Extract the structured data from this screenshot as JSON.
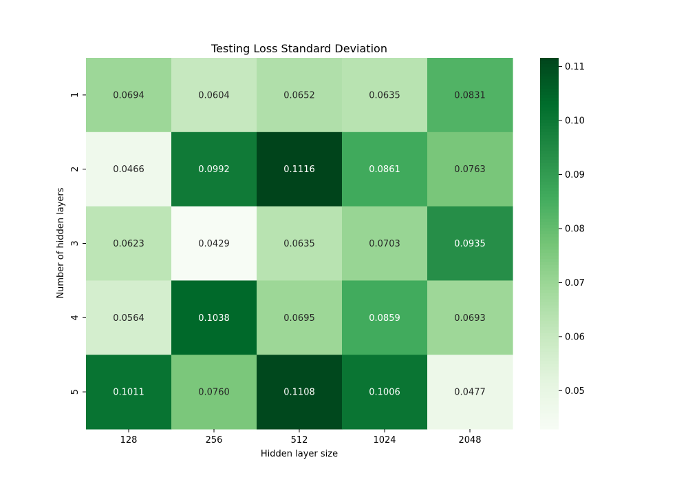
{
  "chart_data": {
    "type": "heatmap",
    "title": "Testing Loss Standard Deviation",
    "xlabel": "Hidden layer size",
    "ylabel": "Number of hidden layers",
    "x_categories": [
      "128",
      "256",
      "512",
      "1024",
      "2048"
    ],
    "y_categories": [
      "1",
      "2",
      "3",
      "4",
      "5"
    ],
    "values": [
      [
        0.0694,
        0.0604,
        0.0652,
        0.0635,
        0.0831
      ],
      [
        0.0466,
        0.0992,
        0.1116,
        0.0861,
        0.0763
      ],
      [
        0.0623,
        0.0429,
        0.0635,
        0.0703,
        0.0935
      ],
      [
        0.0564,
        0.1038,
        0.0695,
        0.0859,
        0.0693
      ],
      [
        0.1011,
        0.076,
        0.1108,
        0.1006,
        0.0477
      ]
    ],
    "cell_labels": [
      [
        "0.0694",
        "0.0604",
        "0.0652",
        "0.0635",
        "0.0831"
      ],
      [
        "0.0466",
        "0.0992",
        "0.1116",
        "0.0861",
        "0.0763"
      ],
      [
        "0.0623",
        "0.0429",
        "0.0635",
        "0.0703",
        "0.0935"
      ],
      [
        "0.0564",
        "0.1038",
        "0.0695",
        "0.0859",
        "0.0693"
      ],
      [
        "0.1011",
        "0.0760",
        "0.1108",
        "0.1006",
        "0.0477"
      ]
    ],
    "colormap": "Greens",
    "colorbar": {
      "range": [
        0.0429,
        0.1116
      ],
      "ticks": [
        0.05,
        0.06,
        0.07,
        0.08,
        0.09,
        0.1,
        0.11
      ],
      "tick_labels": [
        "0.05",
        "0.06",
        "0.07",
        "0.08",
        "0.09",
        "0.10",
        "0.11"
      ]
    },
    "grid": false,
    "colors": {
      "low": "#f7fcf5",
      "high": "#00441b",
      "text_dark": "#262626",
      "text_light": "#ffffff"
    }
  }
}
